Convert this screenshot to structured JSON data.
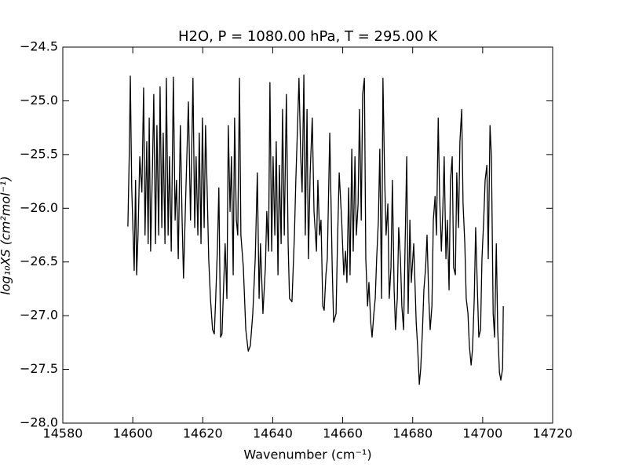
{
  "chart_data": {
    "type": "line",
    "title": "H2O, P = 1080.00 hPa, T = 295.00 K",
    "x_label": "Wavenumber (cm⁻¹)",
    "y_label": "log₁₀XS (cm²mol⁻¹)",
    "xlim": [
      14580,
      14720
    ],
    "xticks": [
      14580,
      14600,
      14620,
      14640,
      14660,
      14680,
      14700,
      14720
    ],
    "ylim": [
      -28.0,
      -24.5
    ],
    "yticks": [
      {
        "value": -28.0,
        "label": "−28.0"
      },
      {
        "value": -27.5,
        "label": "−27.5"
      },
      {
        "value": -27.0,
        "label": "−27.0"
      },
      {
        "value": -26.5,
        "label": "−26.5"
      },
      {
        "value": -26.0,
        "label": "−26.0"
      },
      {
        "value": -25.5,
        "label": "−25.5"
      },
      {
        "value": -25.0,
        "label": "−25.0"
      },
      {
        "value": -24.5,
        "label": "−24.5"
      }
    ],
    "grid": false,
    "x": [
      14598.6,
      14599.0,
      14599.3,
      14599.7,
      14600.4,
      14600.8,
      14601.1,
      14601.5,
      14602.0,
      14602.6,
      14603.1,
      14603.5,
      14604.0,
      14604.4,
      14604.7,
      14605.1,
      14605.6,
      14606.0,
      14606.5,
      14606.9,
      14607.4,
      14607.8,
      14608.3,
      14608.7,
      14609.2,
      14609.6,
      14610.1,
      14610.5,
      14611.0,
      14611.6,
      14612.1,
      14612.5,
      14613.0,
      14613.6,
      14614.1,
      14614.5,
      14615.2,
      14615.9,
      14616.5,
      14617.2,
      14617.7,
      14618.1,
      14618.6,
      14619.0,
      14619.5,
      14619.9,
      14620.4,
      14620.8,
      14621.3,
      14621.7,
      14622.2,
      14622.8,
      14623.3,
      14623.7,
      14624.2,
      14624.6,
      14625.1,
      14625.5,
      14626.0,
      14626.4,
      14626.9,
      14627.3,
      14627.8,
      14628.2,
      14628.7,
      14629.1,
      14629.6,
      14630.0,
      14630.5,
      14630.9,
      14631.6,
      14632.3,
      14633.0,
      14633.6,
      14634.3,
      14635.0,
      14635.6,
      14636.1,
      14636.5,
      14637.2,
      14637.9,
      14638.3,
      14638.8,
      14639.2,
      14639.7,
      14640.1,
      14640.6,
      14641.0,
      14641.5,
      14641.9,
      14642.4,
      14642.8,
      14643.3,
      14643.9,
      14644.4,
      14644.8,
      14645.5,
      14646.2,
      14646.6,
      14647.1,
      14647.5,
      14648.0,
      14648.4,
      14648.9,
      14649.3,
      14649.8,
      14650.2,
      14650.7,
      14651.3,
      14651.8,
      14652.5,
      14652.9,
      14653.4,
      14653.8,
      14654.3,
      14654.7,
      14655.2,
      14655.6,
      14656.3,
      14657.0,
      14657.4,
      14658.1,
      14658.5,
      14659.0,
      14659.7,
      14660.3,
      14660.8,
      14661.2,
      14661.7,
      14662.1,
      14662.6,
      14663.0,
      14663.5,
      14663.9,
      14664.4,
      14664.8,
      14665.3,
      14665.7,
      14666.2,
      14666.6,
      14667.1,
      14667.5,
      14668.0,
      14668.4,
      14668.9,
      14669.3,
      14669.7,
      14670.2,
      14670.6,
      14671.1,
      14671.5,
      14672.0,
      14672.4,
      14672.9,
      14673.3,
      14673.8,
      14674.2,
      14674.7,
      14675.1,
      14675.6,
      14676.0,
      14676.5,
      14676.9,
      14677.4,
      14677.8,
      14678.3,
      14678.7,
      14679.2,
      14679.6,
      14680.3,
      14681.0,
      14681.4,
      14681.9,
      14682.3,
      14682.8,
      14683.2,
      14683.7,
      14684.1,
      14684.6,
      14685.0,
      14685.5,
      14685.9,
      14686.4,
      14686.8,
      14687.3,
      14687.7,
      14688.2,
      14688.6,
      14689.0,
      14689.5,
      14689.9,
      14690.4,
      14690.8,
      14691.3,
      14691.7,
      14692.2,
      14692.6,
      14693.1,
      14693.5,
      14694.0,
      14694.4,
      14694.9,
      14695.3,
      14695.8,
      14696.2,
      14696.7,
      14697.1,
      14697.6,
      14698.0,
      14698.5,
      14698.9,
      14699.4,
      14699.8,
      14700.3,
      14700.7,
      14701.2,
      14701.6,
      14702.1,
      14702.5,
      14703.0,
      14703.4,
      14703.9,
      14704.3,
      14704.8,
      14705.2,
      14705.7,
      14705.9
    ],
    "series": [
      {
        "color": "#000000",
        "values": [
          -26.17,
          -25.49,
          -24.77,
          -25.81,
          -26.58,
          -25.74,
          -26.62,
          -26.25,
          -25.52,
          -25.85,
          -24.88,
          -26.25,
          -25.38,
          -26.33,
          -25.16,
          -26.4,
          -25.67,
          -24.94,
          -26.33,
          -25.23,
          -26.25,
          -24.87,
          -26.18,
          -25.3,
          -26.33,
          -24.79,
          -26.25,
          -25.52,
          -26.4,
          -24.78,
          -26.11,
          -25.74,
          -26.47,
          -25.23,
          -26.11,
          -26.65,
          -25.81,
          -25.01,
          -26.11,
          -24.79,
          -26.18,
          -25.52,
          -26.25,
          -25.3,
          -26.33,
          -25.16,
          -26.18,
          -25.23,
          -25.89,
          -26.47,
          -26.84,
          -27.13,
          -27.17,
          -26.84,
          -26.36,
          -25.81,
          -27.2,
          -27.17,
          -26.69,
          -26.33,
          -26.84,
          -25.23,
          -26.03,
          -25.52,
          -26.62,
          -25.16,
          -26.11,
          -26.25,
          -24.79,
          -26.25,
          -26.55,
          -27.13,
          -27.33,
          -27.28,
          -26.98,
          -26.47,
          -25.67,
          -26.84,
          -26.33,
          -26.98,
          -26.55,
          -26.03,
          -26.4,
          -24.83,
          -26.4,
          -25.52,
          -26.25,
          -25.38,
          -26.62,
          -25.6,
          -26.33,
          -25.08,
          -26.25,
          -24.94,
          -26.33,
          -26.84,
          -26.87,
          -26.25,
          -25.74,
          -25.23,
          -24.79,
          -25.52,
          -25.85,
          -24.76,
          -26.25,
          -25.08,
          -26.47,
          -25.67,
          -25.16,
          -26.03,
          -26.4,
          -25.74,
          -26.25,
          -26.11,
          -26.91,
          -26.95,
          -26.62,
          -26.47,
          -25.3,
          -26.55,
          -27.06,
          -26.98,
          -26.33,
          -25.67,
          -26.11,
          -26.62,
          -26.4,
          -26.69,
          -25.81,
          -26.62,
          -25.45,
          -26.4,
          -25.52,
          -26.25,
          -25.96,
          -25.08,
          -26.11,
          -24.94,
          -24.79,
          -26.47,
          -26.91,
          -26.69,
          -27.06,
          -27.2,
          -26.98,
          -26.84,
          -26.47,
          -26.11,
          -25.45,
          -26.84,
          -24.79,
          -25.74,
          -26.25,
          -25.96,
          -26.84,
          -26.55,
          -25.74,
          -26.76,
          -27.13,
          -26.84,
          -26.18,
          -26.47,
          -26.91,
          -27.13,
          -26.4,
          -25.52,
          -26.98,
          -26.11,
          -26.69,
          -26.33,
          -27.06,
          -27.28,
          -27.64,
          -27.49,
          -27.13,
          -26.76,
          -26.55,
          -26.25,
          -26.84,
          -27.13,
          -26.91,
          -26.11,
          -25.89,
          -26.25,
          -25.16,
          -25.89,
          -26.4,
          -26.03,
          -25.52,
          -26.47,
          -26.11,
          -26.76,
          -25.74,
          -25.52,
          -26.55,
          -26.62,
          -25.67,
          -26.18,
          -25.38,
          -25.08,
          -25.96,
          -26.33,
          -26.84,
          -26.98,
          -27.28,
          -27.46,
          -27.31,
          -26.84,
          -26.18,
          -26.76,
          -27.2,
          -27.13,
          -26.47,
          -26.11,
          -25.74,
          -25.6,
          -26.47,
          -25.23,
          -25.52,
          -26.98,
          -27.2,
          -26.33,
          -27.13,
          -27.53,
          -27.6,
          -27.49,
          -26.91
        ]
      }
    ]
  }
}
